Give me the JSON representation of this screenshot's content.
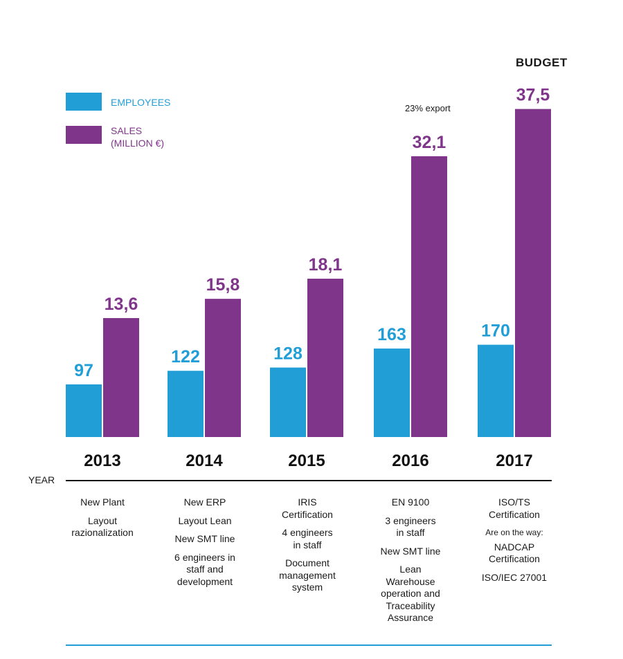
{
  "colors": {
    "employees": "#229ed6",
    "sales": "#7f358a",
    "text": "#1a1a1a"
  },
  "legend": {
    "employees": "EMPLOYEES",
    "sales_line1": "SALES",
    "sales_line2": "(MILLION €)"
  },
  "axis": {
    "year_label": "YEAR"
  },
  "annotations": {
    "budget": "BUDGET",
    "export": "23% export"
  },
  "chart_data": {
    "type": "bar",
    "title": "",
    "xlabel": "YEAR",
    "ylabel": "",
    "categories": [
      "2013",
      "2014",
      "2015",
      "2016",
      "2017"
    ],
    "series": [
      {
        "name": "EMPLOYEES",
        "values": [
          97,
          122,
          128,
          163,
          170
        ],
        "labels": [
          "97",
          "122",
          "128",
          "163",
          "170"
        ]
      },
      {
        "name": "SALES (MILLION €)",
        "values": [
          13.6,
          15.8,
          18.1,
          32.1,
          37.5
        ],
        "labels": [
          "13,6",
          "15,8",
          "18,1",
          "32,1",
          "37,5"
        ]
      }
    ],
    "grid": false,
    "legend": "top-left"
  },
  "milestones": [
    {
      "year": "2013",
      "items": [
        {
          "text": "New Plant"
        },
        {
          "text": "Layout\nrazionalization"
        }
      ]
    },
    {
      "year": "2014",
      "items": [
        {
          "text": "New ERP"
        },
        {
          "text": "Layout Lean"
        },
        {
          "text": "New SMT line"
        },
        {
          "text": "6 engineers in\nstaff and\ndevelopment"
        }
      ]
    },
    {
      "year": "2015",
      "items": [
        {
          "text": "IRIS\nCertification"
        },
        {
          "text": "4 engineers\nin staff"
        },
        {
          "text": "Document\nmanagement\nsystem"
        }
      ]
    },
    {
      "year": "2016",
      "items": [
        {
          "text": "EN 9100"
        },
        {
          "text": "3 engineers\nin staff"
        },
        {
          "text": "New SMT line"
        },
        {
          "text": "Lean\nWarehouse\noperation and\nTraceability\nAssurance"
        }
      ]
    },
    {
      "year": "2017",
      "items": [
        {
          "text": "ISO/TS\nCertification"
        },
        {
          "text": "Are on the way:",
          "small": true
        },
        {
          "text": "NADCAP\nCertification"
        },
        {
          "text": "ISO/IEC 27001"
        }
      ]
    }
  ]
}
